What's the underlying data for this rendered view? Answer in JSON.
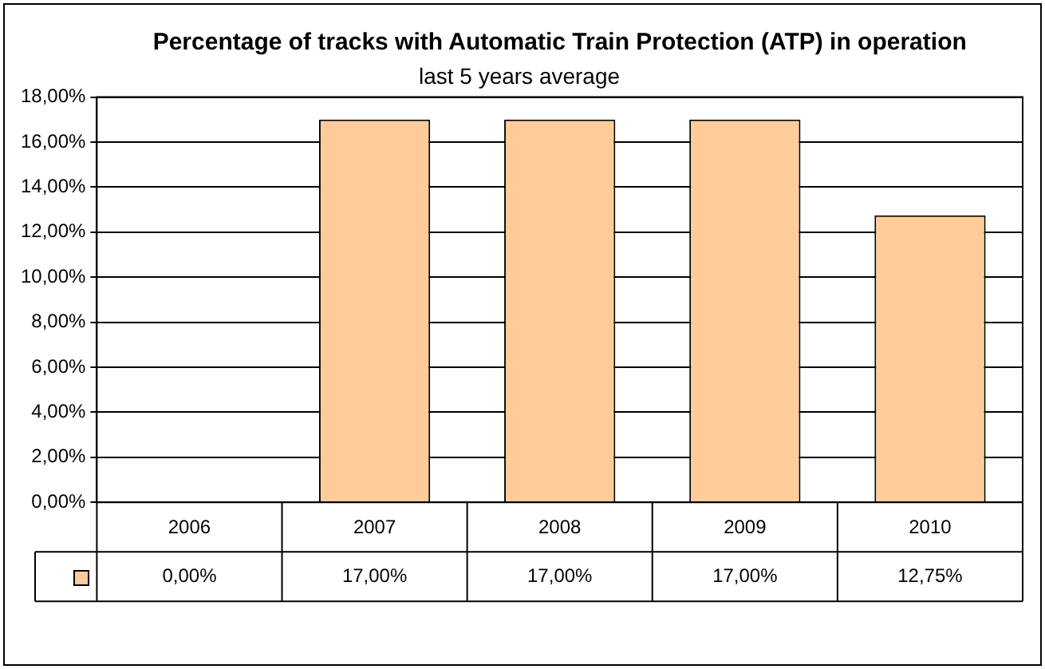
{
  "chart_data": {
    "type": "bar",
    "title": "Percentage of tracks with Automatic Train Protection (ATP) in operation",
    "subtitle": "last 5 years average",
    "categories": [
      "2006",
      "2007",
      "2008",
      "2009",
      "2010"
    ],
    "values": [
      0,
      17,
      17,
      17,
      12.75
    ],
    "color": "#ffcc99",
    "value_labels": [
      "0,00%",
      "17,00%",
      "17,00%",
      "17,00%",
      "12,75%"
    ],
    "ylim": [
      0,
      18
    ],
    "yticks": [
      {
        "value": 0,
        "label": "0,00%"
      },
      {
        "value": 2,
        "label": "2,00%"
      },
      {
        "value": 4,
        "label": "4,00%"
      },
      {
        "value": 6,
        "label": "6,00%"
      },
      {
        "value": 8,
        "label": "8,00%"
      },
      {
        "value": 10,
        "label": "10,00%"
      },
      {
        "value": 12,
        "label": "12,00%"
      },
      {
        "value": 14,
        "label": "14,00%"
      },
      {
        "value": 16,
        "label": "16,00%"
      },
      {
        "value": 18,
        "label": "18,00%"
      }
    ],
    "grid": "y",
    "legend": false
  }
}
